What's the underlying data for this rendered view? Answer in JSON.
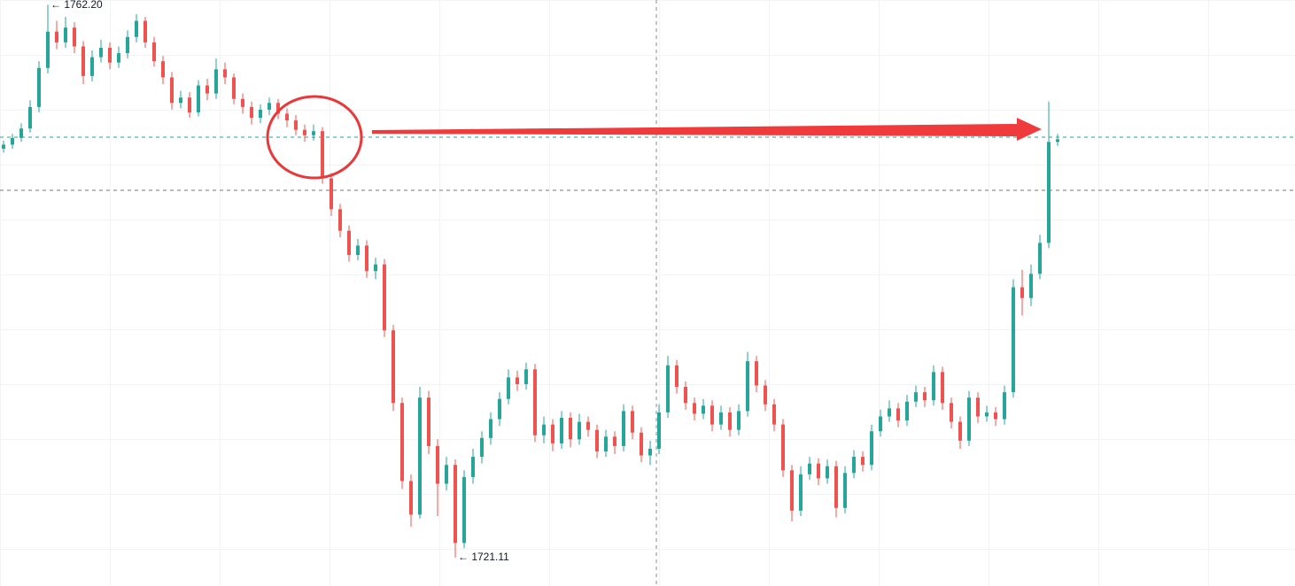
{
  "chart_data": {
    "type": "candlestick",
    "up_color": "#26a69a",
    "down_color": "#ef5350",
    "ylim": [
      1719.0,
      1762.55
    ],
    "open": [
      1751.5,
      1751.8,
      1752.3,
      1753.0,
      1754.6,
      1757.5,
      1760.2,
      1759.4,
      1760.5,
      1759.1,
      1756.9,
      1758.3,
      1759.0,
      1757.9,
      1758.6,
      1759.8,
      1761.0,
      1759.4,
      1758.0,
      1756.8,
      1754.9,
      1755.3,
      1754.2,
      1756.2,
      1755.6,
      1757.4,
      1756.8,
      1755.2,
      1754.6,
      1753.8,
      1754.4,
      1754.9,
      1754.1,
      1753.6,
      1752.9,
      1752.5,
      1752.8,
      1749.3,
      1747.0,
      1745.4,
      1743.6,
      1744.3,
      1742.4,
      1742.9,
      1738.0,
      1732.6,
      1726.8,
      1724.3,
      1733.0,
      1729.4,
      1726.6,
      1728.0,
      1722.2,
      1727.1,
      1728.6,
      1730.0,
      1731.4,
      1732.9,
      1734.5,
      1734.0,
      1735.1,
      1730.2,
      1731.0,
      1729.6,
      1731.5,
      1729.9,
      1731.2,
      1730.6,
      1729.0,
      1730.1,
      1729.4,
      1732.0,
      1730.4,
      1728.7,
      1729.2,
      1731.9,
      1735.4,
      1733.8,
      1732.6,
      1731.8,
      1732.4,
      1731.0,
      1731.9,
      1730.6,
      1732.0,
      1735.7,
      1733.9,
      1732.5,
      1731.0,
      1727.6,
      1724.6,
      1727.3,
      1728.1,
      1727.0,
      1727.9,
      1724.8,
      1727.4,
      1728.6,
      1728.0,
      1730.5,
      1731.6,
      1732.2,
      1731.3,
      1732.7,
      1733.4,
      1732.8,
      1734.9,
      1732.6,
      1731.2,
      1729.8,
      1733.0,
      1731.6,
      1731.9,
      1731.4,
      1733.4,
      1741.2,
      1740.4,
      1742.2,
      1744.5,
      1752.0
    ],
    "high": [
      1752.1,
      1752.6,
      1753.4,
      1755.1,
      1758.0,
      1762.2,
      1761.0,
      1761.3,
      1760.9,
      1759.5,
      1758.8,
      1759.6,
      1759.4,
      1759.1,
      1760.3,
      1761.5,
      1761.3,
      1759.8,
      1758.4,
      1757.2,
      1755.8,
      1755.7,
      1756.6,
      1756.7,
      1758.2,
      1757.9,
      1757.1,
      1755.6,
      1755.0,
      1754.8,
      1755.3,
      1755.2,
      1754.5,
      1754.0,
      1753.3,
      1753.3,
      1753.1,
      1749.7,
      1747.4,
      1745.8,
      1744.8,
      1744.7,
      1743.4,
      1743.3,
      1738.4,
      1733.0,
      1727.3,
      1733.8,
      1733.5,
      1729.9,
      1728.6,
      1728.4,
      1727.6,
      1729.2,
      1730.5,
      1731.9,
      1733.4,
      1735.1,
      1735.0,
      1735.6,
      1735.5,
      1731.6,
      1731.4,
      1732.0,
      1731.9,
      1731.8,
      1731.6,
      1731.0,
      1730.6,
      1730.5,
      1732.5,
      1732.4,
      1730.8,
      1729.8,
      1732.5,
      1736.1,
      1735.8,
      1734.2,
      1733.0,
      1732.9,
      1732.8,
      1732.4,
      1732.3,
      1732.5,
      1736.4,
      1736.1,
      1734.3,
      1732.9,
      1731.4,
      1728.0,
      1727.9,
      1728.6,
      1728.5,
      1728.4,
      1728.3,
      1727.9,
      1729.1,
      1729.0,
      1731.0,
      1732.1,
      1732.8,
      1732.6,
      1733.2,
      1733.9,
      1733.8,
      1735.4,
      1735.3,
      1733.0,
      1731.6,
      1733.5,
      1733.4,
      1732.4,
      1732.3,
      1733.9,
      1741.8,
      1742.5,
      1742.9,
      1745.1,
      1755.0,
      1752.6
    ],
    "low": [
      1751.2,
      1751.5,
      1752.0,
      1752.7,
      1754.2,
      1757.1,
      1758.9,
      1759.0,
      1758.6,
      1756.3,
      1756.5,
      1757.9,
      1757.4,
      1757.5,
      1758.2,
      1759.4,
      1759.0,
      1757.6,
      1756.3,
      1754.4,
      1754.5,
      1753.8,
      1753.9,
      1755.1,
      1755.2,
      1756.3,
      1754.8,
      1754.1,
      1753.3,
      1753.4,
      1754.0,
      1753.7,
      1753.1,
      1752.5,
      1752.0,
      1752.1,
      1748.9,
      1746.5,
      1744.9,
      1743.1,
      1743.2,
      1741.9,
      1741.8,
      1737.5,
      1732.0,
      1726.2,
      1723.4,
      1724.0,
      1728.8,
      1724.2,
      1726.1,
      1721.11,
      1721.8,
      1726.6,
      1728.1,
      1729.5,
      1730.9,
      1732.5,
      1733.5,
      1733.6,
      1729.7,
      1729.6,
      1729.0,
      1729.2,
      1729.3,
      1729.5,
      1730.1,
      1728.5,
      1728.6,
      1728.8,
      1729.0,
      1729.9,
      1728.2,
      1728.0,
      1728.8,
      1731.5,
      1733.3,
      1732.1,
      1731.3,
      1731.4,
      1730.5,
      1730.6,
      1730.1,
      1730.2,
      1731.6,
      1733.4,
      1732.0,
      1730.5,
      1727.1,
      1723.8,
      1724.2,
      1726.9,
      1726.5,
      1726.6,
      1724.1,
      1724.4,
      1727.0,
      1727.5,
      1727.6,
      1730.1,
      1731.2,
      1730.8,
      1730.9,
      1732.3,
      1732.3,
      1732.4,
      1732.1,
      1730.7,
      1729.2,
      1729.4,
      1731.1,
      1731.2,
      1730.9,
      1731.0,
      1733.0,
      1739.1,
      1739.8,
      1741.8,
      1744.1,
      1751.7
    ],
    "close": [
      1751.8,
      1752.3,
      1753.0,
      1754.6,
      1757.5,
      1760.2,
      1759.4,
      1760.5,
      1759.1,
      1756.9,
      1758.3,
      1759.0,
      1757.9,
      1758.6,
      1759.8,
      1761.0,
      1759.4,
      1758.0,
      1756.8,
      1754.9,
      1755.3,
      1754.2,
      1756.2,
      1755.6,
      1757.4,
      1756.8,
      1755.2,
      1754.6,
      1753.8,
      1754.4,
      1754.9,
      1754.1,
      1753.6,
      1752.9,
      1752.5,
      1752.8,
      1749.3,
      1747.0,
      1745.4,
      1743.6,
      1744.3,
      1742.4,
      1742.9,
      1738.0,
      1732.6,
      1726.8,
      1724.3,
      1733.0,
      1729.4,
      1726.6,
      1728.0,
      1722.2,
      1727.1,
      1728.6,
      1730.0,
      1731.4,
      1732.9,
      1734.5,
      1734.0,
      1735.1,
      1730.2,
      1731.0,
      1729.6,
      1731.5,
      1729.9,
      1731.2,
      1730.6,
      1729.0,
      1730.1,
      1729.4,
      1732.0,
      1730.4,
      1728.7,
      1729.2,
      1731.9,
      1735.4,
      1733.8,
      1732.6,
      1731.8,
      1732.4,
      1731.0,
      1731.9,
      1730.6,
      1732.0,
      1735.7,
      1733.9,
      1732.5,
      1731.0,
      1727.6,
      1724.6,
      1727.3,
      1728.1,
      1727.0,
      1727.9,
      1724.8,
      1727.4,
      1728.6,
      1728.0,
      1730.5,
      1731.6,
      1732.2,
      1731.3,
      1732.7,
      1733.4,
      1732.8,
      1734.9,
      1732.6,
      1731.2,
      1729.8,
      1733.0,
      1731.6,
      1731.9,
      1731.4,
      1733.4,
      1741.2,
      1740.4,
      1742.2,
      1744.5,
      1752.0,
      1752.2
    ],
    "price_lines": [
      {
        "value": 1752.35,
        "color": "#26a69a"
      },
      {
        "value": 1748.41,
        "color": "#777777"
      }
    ],
    "annotations": [
      {
        "label": "← 1762.20",
        "value": 1762.2
      },
      {
        "label": "← 1721.11",
        "value": 1721.11
      }
    ]
  }
}
